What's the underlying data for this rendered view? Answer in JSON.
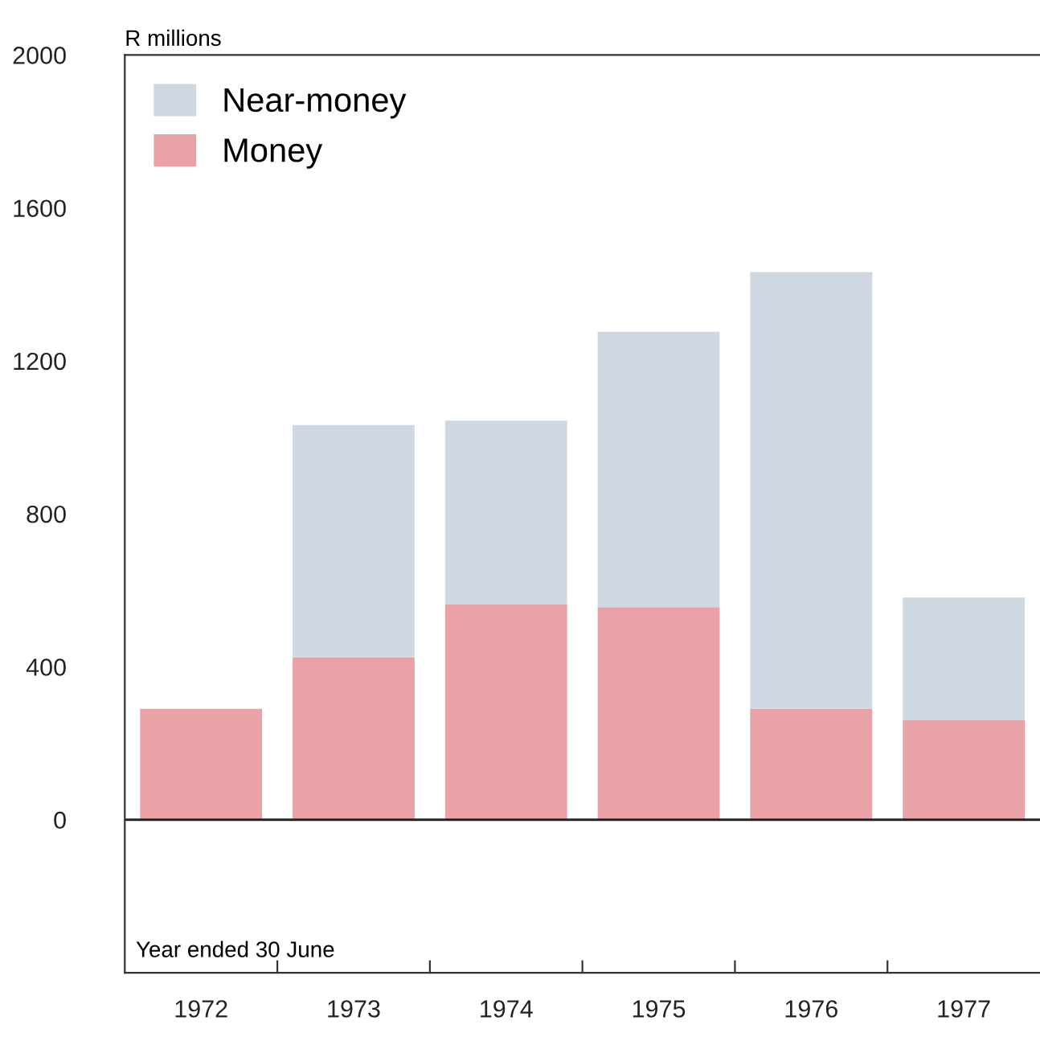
{
  "chart_data": {
    "type": "bar",
    "stacked": true,
    "ylabel": "R millions",
    "categories": [
      "1972",
      "1973",
      "1974",
      "1975",
      "1976",
      "1977"
    ],
    "series": [
      {
        "name": "Money",
        "color": "#e9a3a6",
        "values": [
          290,
          425,
          564,
          556,
          290,
          261
        ]
      },
      {
        "name": "Near-money",
        "color": "#cfd8e2",
        "values": [
          0,
          607,
          480,
          720,
          1142,
          320
        ]
      }
    ],
    "ylim": [
      -400,
      2000
    ],
    "yticks": [
      0,
      400,
      800,
      1200,
      1600,
      2000
    ],
    "ref_lines": [
      {
        "axis": "y",
        "value": 0,
        "color": "#222222"
      }
    ],
    "annotations": [
      "Year ended 30 June"
    ],
    "legend": "top left",
    "grid": false
  }
}
